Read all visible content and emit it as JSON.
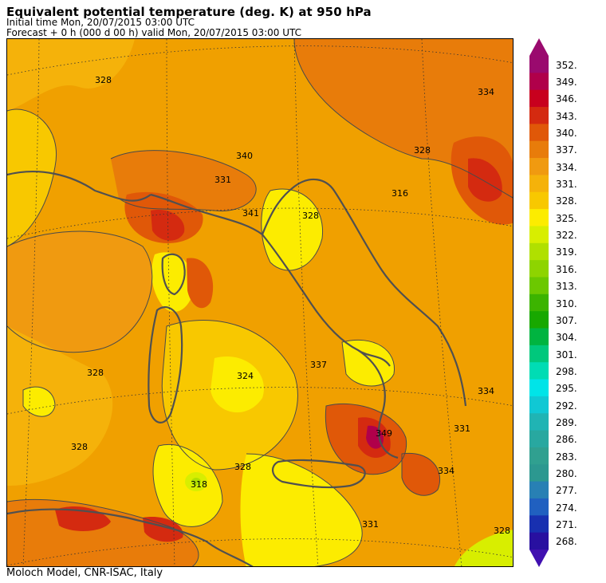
{
  "header": {
    "title": "Equivalent potential temperature (deg. K) at 950 hPa",
    "initial_time": "Initial time  Mon, 20/07/2015  03:00 UTC",
    "forecast": "Forecast  +    0 h  (000 d 00 h)  valid Mon, 20/07/2015 03:00 UTC"
  },
  "footer": "Moloch Model, CNR-ISAC, Italy",
  "colorbar": {
    "levels": [
      "352.",
      "349.",
      "346.",
      "343.",
      "340.",
      "337.",
      "334.",
      "331.",
      "328.",
      "325.",
      "322.",
      "319.",
      "316.",
      "313.",
      "310.",
      "307.",
      "304.",
      "301.",
      "298.",
      "295.",
      "292.",
      "289.",
      "286.",
      "283.",
      "280.",
      "277.",
      "274.",
      "271.",
      "268."
    ],
    "colors": [
      "#9a0a6e",
      "#b0004a",
      "#c8001e",
      "#d42a10",
      "#e05808",
      "#e87c0a",
      "#f09a10",
      "#f5b20a",
      "#f8c800",
      "#fcec00",
      "#d8ee00",
      "#b0e000",
      "#8ed400",
      "#6cc800",
      "#3cb400",
      "#18a800",
      "#00b440",
      "#00c87c",
      "#00dcb4",
      "#00e4e8",
      "#10c8d4",
      "#20b4b4",
      "#28a8a0",
      "#30a090",
      "#2c9890",
      "#2880b4",
      "#2060c0",
      "#1830b0",
      "#2810a0"
    ],
    "top_arrow_color": "#9a0a6e",
    "bottom_arrow_color": "#4010b0"
  },
  "map": {
    "contour_labels": [
      "328",
      "331",
      "334",
      "318",
      "324",
      "340",
      "337",
      "316",
      "341",
      "349"
    ]
  }
}
